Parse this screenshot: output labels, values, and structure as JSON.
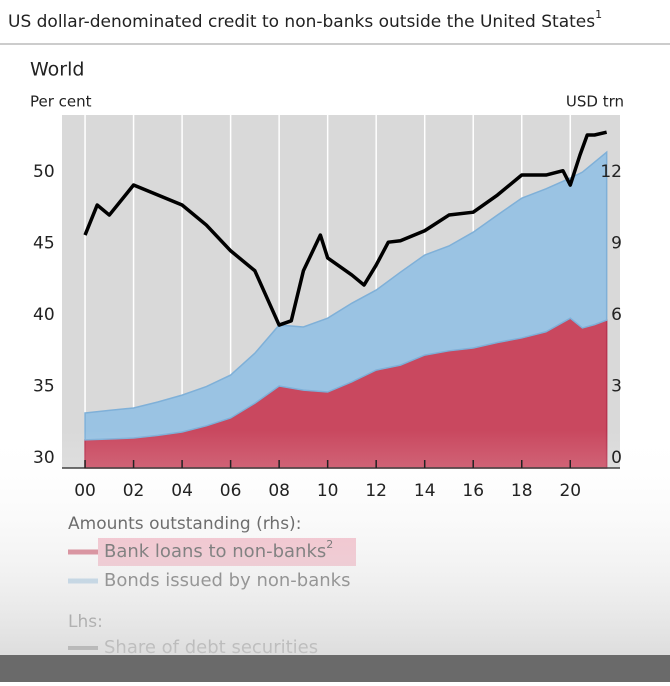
{
  "chart_data": {
    "type": "stacked-area-line",
    "title": "US dollar-denominated credit to non-banks outside the United States",
    "title_footnote": "1",
    "subtitle": "World",
    "ylabel": "Per cent",
    "y2label": "USD trn",
    "x": [
      2000,
      2001,
      2002,
      2003,
      2004,
      2005,
      2006,
      2007,
      2008,
      2009,
      2010,
      2011,
      2012,
      2013,
      2014,
      2015,
      2016,
      2017,
      2018,
      2019,
      2020,
      2020.5,
      2021,
      2021.5
    ],
    "series": [
      {
        "name": "Bank loans to non-banks",
        "name_footnote": "2",
        "color": "#c9485f",
        "axis": "y2",
        "values": [
          0.76,
          0.8,
          0.84,
          0.95,
          1.09,
          1.35,
          1.68,
          2.3,
          3.02,
          2.85,
          2.77,
          3.2,
          3.69,
          3.9,
          4.32,
          4.5,
          4.62,
          4.85,
          5.04,
          5.3,
          5.87,
          5.46,
          5.6,
          5.79
        ]
      },
      {
        "name": "Bonds issued by non-banks",
        "color": "#9ac3e3",
        "axis": "y2",
        "values": [
          1.13,
          1.2,
          1.26,
          1.4,
          1.55,
          1.65,
          1.8,
          2.1,
          2.56,
          2.65,
          3.1,
          3.3,
          3.36,
          3.9,
          4.2,
          4.4,
          4.86,
          5.35,
          5.87,
          6.0,
          5.88,
          6.54,
          6.82,
          7.05
        ]
      }
    ],
    "line": {
      "name": "Share of debt securities",
      "color": "#000000",
      "x": [
        2000,
        2000.5,
        2001,
        2002,
        2003,
        2004,
        2005,
        2006,
        2007,
        2008,
        2008.5,
        2009,
        2009.7,
        2010,
        2011,
        2011.5,
        2012,
        2012.5,
        2013,
        2014,
        2015,
        2016,
        2017,
        2018,
        2019,
        2019.7,
        2020,
        2020.4,
        2020.7,
        2021,
        2021.5
      ],
      "values": [
        45.6,
        47.7,
        47.0,
        49.1,
        48.4,
        47.7,
        46.3,
        44.5,
        43.1,
        39.3,
        39.6,
        43.1,
        45.6,
        44.0,
        42.8,
        42.1,
        43.5,
        45.1,
        45.2,
        45.9,
        47.0,
        47.2,
        48.4,
        49.8,
        49.8,
        50.1,
        49.1,
        51.2,
        52.6,
        52.6,
        52.8
      ]
    },
    "legend_group_rhs": "Amounts outstanding (rhs):",
    "legend_group_lhs": "Lhs:",
    "xlim": [
      1999.05,
      2022.05
    ],
    "xticks": [
      {
        "value": 2000,
        "label": "00"
      },
      {
        "value": 2002,
        "label": "02"
      },
      {
        "value": 2004,
        "label": "04"
      },
      {
        "value": 2006,
        "label": "06"
      },
      {
        "value": 2008,
        "label": "08"
      },
      {
        "value": 2010,
        "label": "10"
      },
      {
        "value": 2012,
        "label": "12"
      },
      {
        "value": 2014,
        "label": "14"
      },
      {
        "value": 2016,
        "label": "16"
      },
      {
        "value": 2018,
        "label": "18"
      },
      {
        "value": 2020,
        "label": "20"
      }
    ],
    "ylim": [
      29.3,
      54
    ],
    "yticks": [
      30,
      35,
      40,
      45,
      50
    ],
    "y2lim": [
      -0.42,
      14.4
    ],
    "y2ticks": [
      0,
      3,
      6,
      9,
      12
    ],
    "grid": "x"
  }
}
